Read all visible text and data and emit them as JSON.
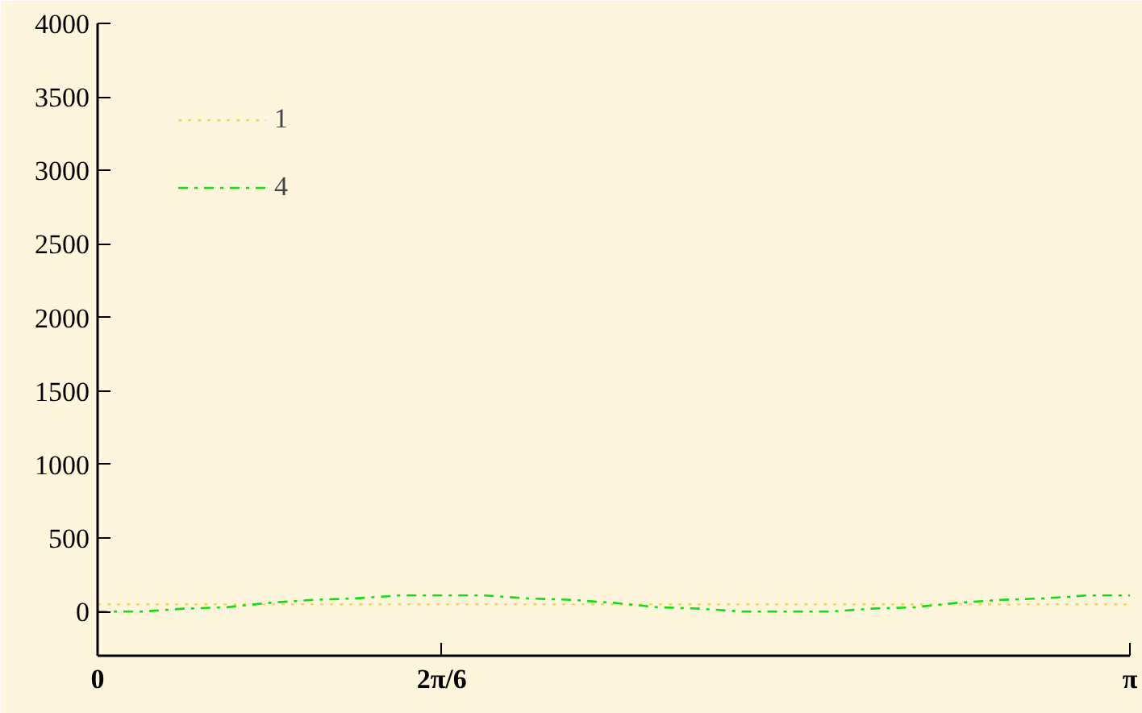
{
  "chart_data": {
    "type": "line",
    "x": [
      0,
      0.131,
      0.262,
      0.393,
      0.524,
      0.654,
      0.785,
      0.916,
      1.047,
      1.178,
      1.309,
      1.44,
      1.571,
      1.702,
      1.833,
      1.963,
      2.094,
      2.225,
      2.356,
      2.487,
      2.618,
      2.749,
      2.88,
      3.011,
      3.1416
    ],
    "series": [
      {
        "name": "1",
        "color": "#f2d66b",
        "line_style": "dotted",
        "values": [
          50,
          50,
          50,
          50,
          50,
          50,
          50,
          50,
          50,
          50,
          50,
          50,
          50,
          50,
          50,
          50,
          50,
          50,
          50,
          50,
          50,
          50,
          50,
          50,
          50
        ]
      },
      {
        "name": "4",
        "color": "#11dd11",
        "line_style": "dashdot",
        "values": [
          0,
          0,
          20,
          30,
          60,
          80,
          90,
          110,
          110,
          110,
          90,
          80,
          60,
          30,
          20,
          0,
          0,
          0,
          20,
          30,
          60,
          80,
          90,
          110,
          110
        ]
      }
    ],
    "xlim": [
      0,
      3.1416
    ],
    "ylim": [
      -300,
      4000
    ],
    "xticks": [
      0,
      {
        "value": 1.0472,
        "label": "2π/6"
      },
      {
        "value": 3.1416,
        "label": "π"
      }
    ],
    "yticks": [
      0,
      500,
      1000,
      1500,
      2000,
      2500,
      3000,
      3500,
      4000
    ],
    "grid": false,
    "legend": "top left",
    "marker": "none"
  }
}
